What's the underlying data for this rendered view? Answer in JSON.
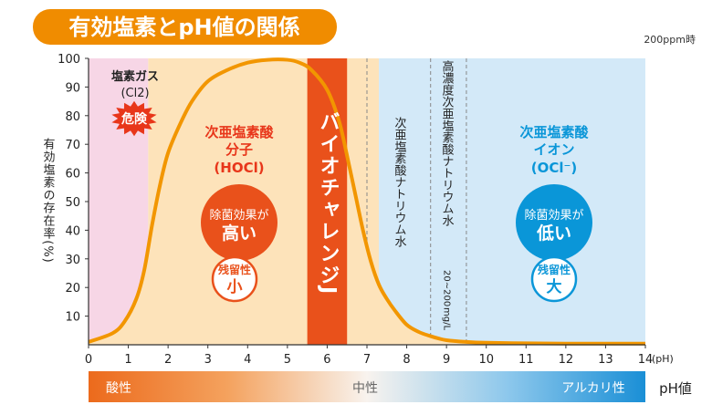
{
  "chart_data": {
    "type": "area",
    "title": "有効塩素とpH値の関係",
    "note": "200ppm時",
    "xlabel": "(pH)",
    "ylabel": "有効塩素の存在率(%)",
    "xlim": [
      0,
      14
    ],
    "ylim": [
      0,
      100
    ],
    "x_ticks": [
      "0",
      "1",
      "2",
      "3",
      "4",
      "5",
      "6",
      "7",
      "8",
      "9",
      "10",
      "11",
      "12",
      "13",
      "14"
    ],
    "y_ticks": [
      "10",
      "20",
      "30",
      "40",
      "50",
      "60",
      "70",
      "80",
      "90",
      "100"
    ],
    "curve": {
      "x": [
        0,
        0.6,
        0.9,
        1.2,
        1.4,
        1.6,
        1.8,
        2.0,
        2.3,
        2.6,
        3.0,
        3.5,
        4.0,
        4.5,
        5.0,
        5.3,
        5.6,
        6.0,
        6.3,
        6.5,
        6.7,
        6.9,
        7.1,
        7.3,
        7.5,
        7.7,
        8.0,
        8.3,
        8.6,
        8.8,
        9.0,
        9.5,
        10.0,
        11.0,
        12.0,
        13.0,
        14.0
      ],
      "y": [
        1,
        4,
        8,
        16,
        26,
        42,
        56,
        67,
        77,
        85,
        92,
        96,
        98.5,
        99.5,
        99.5,
        98.5,
        96,
        89,
        78,
        66,
        53,
        40,
        29,
        21,
        16,
        12,
        7,
        4.5,
        3,
        2.2,
        1.6,
        1.0,
        0.7,
        0.5,
        0.4,
        0.4,
        0.4
      ]
    },
    "regions": [
      {
        "name": "chlorine-gas",
        "from": 0,
        "to": 1.5,
        "color": "#f7d6e6"
      },
      {
        "name": "hypochlorous-acid",
        "from": 1.5,
        "to": 7.3,
        "color": "#fde3ba"
      },
      {
        "name": "hypochlorite-ion",
        "from": 7.3,
        "to": 14,
        "color": "#d3e9f8"
      }
    ],
    "highlight_band": {
      "label": "バイオチャレンジJ",
      "from": 5.5,
      "to": 6.5,
      "color": "#e9511b"
    },
    "dashed_lines": [
      7.0,
      8.6,
      9.5
    ],
    "colors": {
      "curve": "#f29600",
      "orange": "#e9511b",
      "blue": "#0a96d8",
      "red_text": "#e8361a"
    },
    "annotations": {
      "chlorine_gas": {
        "line1": "塩素ガス",
        "line2": "(Cl2)",
        "danger": "危険"
      },
      "hocl": {
        "line1": "次亜塩素酸",
        "line2": "分子",
        "line3": "(HOCl)",
        "effect_line1": "除菌効果が",
        "effect_line2": "高い",
        "residue_line1": "残留性",
        "residue_line2": "小"
      },
      "naocl": {
        "text": "次亜塩素酸ナトリウム水"
      },
      "naocl_high": {
        "text": "高濃度次亜塩素酸ナトリウム水",
        "range": "20~200",
        "unit": "mg/L"
      },
      "ocl": {
        "line1": "次亜塩素酸",
        "line2": "イオン",
        "line3": "(OCl⁻)",
        "effect_line1": "除菌効果が",
        "effect_line2": "低い",
        "residue_line1": "残留性",
        "residue_line2": "大"
      }
    },
    "ph_scale": {
      "acid": "酸性",
      "neutral": "中性",
      "alkaline": "アルカリ性",
      "label": "pH値"
    }
  }
}
